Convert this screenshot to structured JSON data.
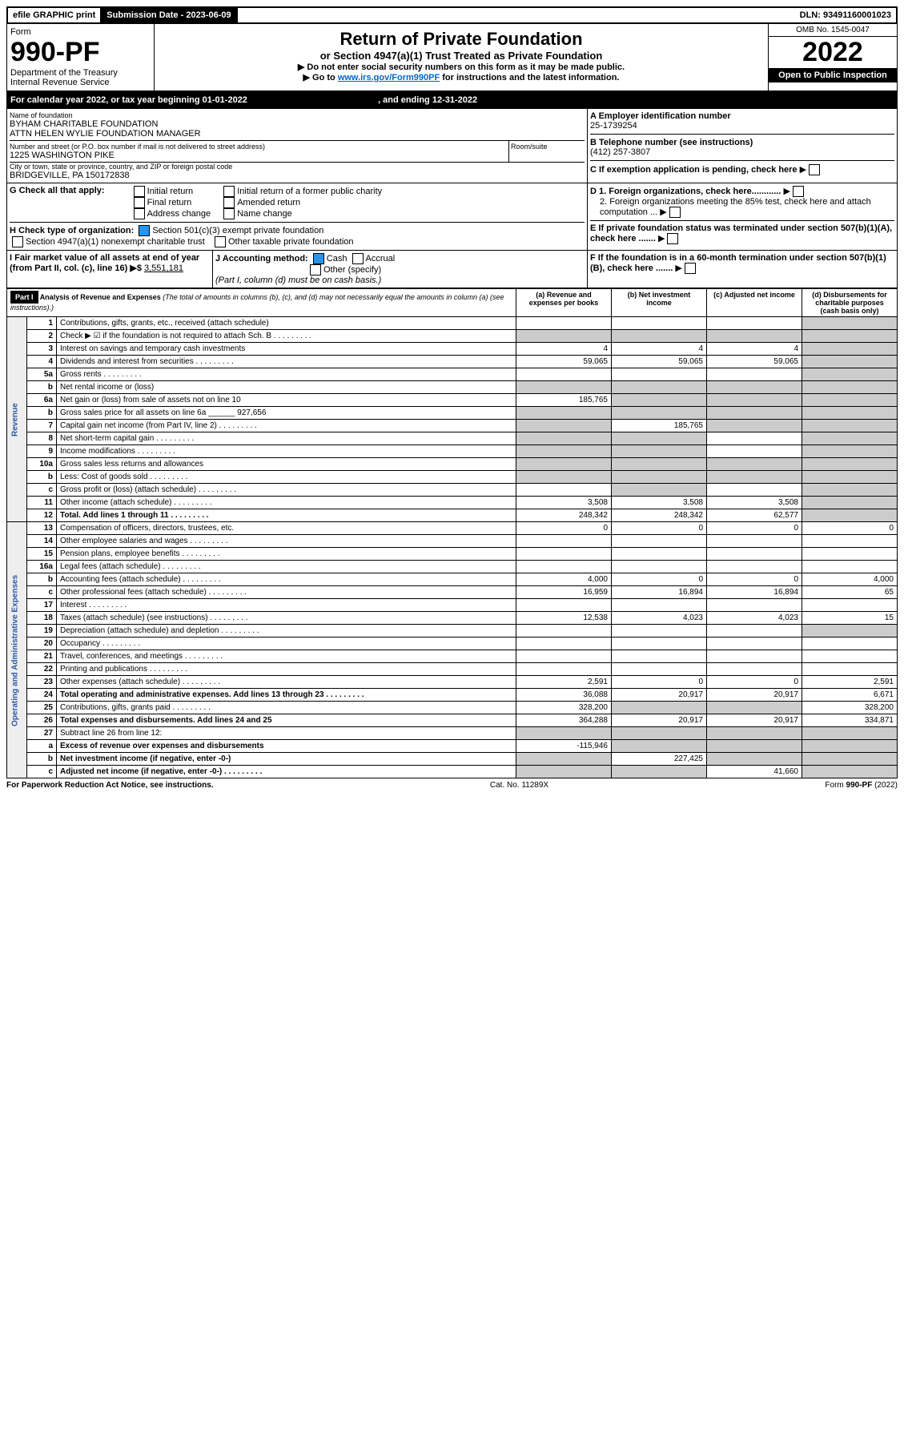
{
  "topbar": {
    "efile": "efile GRAPHIC print",
    "subdate_lbl": "Submission Date - ",
    "subdate": "2023-06-09",
    "dln": "DLN: 93491160001023"
  },
  "header": {
    "form": "Form",
    "form_no": "990-PF",
    "dept": "Department of the Treasury",
    "irs": "Internal Revenue Service",
    "title": "Return of Private Foundation",
    "sub": "or Section 4947(a)(1) Trust Treated as Private Foundation",
    "note1": "▶ Do not enter social security numbers on this form as it may be made public.",
    "note2": "▶ Go to ",
    "link": "www.irs.gov/Form990PF",
    "note3": " for instructions and the latest information.",
    "omb": "OMB No. 1545-0047",
    "year": "2022",
    "opi": "Open to Public Inspection"
  },
  "cal": {
    "pre": "For calendar year 2022, or tax year beginning ",
    "begin": "01-01-2022",
    "mid": ", and ending ",
    "end": "12-31-2022"
  },
  "id": {
    "name_lbl": "Name of foundation",
    "name1": "BYHAM CHARITABLE FOUNDATION",
    "name2": "ATTN HELEN WYLIE FOUNDATION MANAGER",
    "addr_lbl": "Number and street (or P.O. box number if mail is not delivered to street address)",
    "room_lbl": "Room/suite",
    "addr": "1225 WASHINGTON PIKE",
    "city_lbl": "City or town, state or province, country, and ZIP or foreign postal code",
    "city": "BRIDGEVILLE, PA  150172838",
    "a_lbl": "A Employer identification number",
    "a": "25-1739254",
    "b_lbl": "B Telephone number (see instructions)",
    "b": "(412) 257-3807",
    "c_lbl": "C If exemption application is pending, check here"
  },
  "g": {
    "lbl": "G Check all that apply:",
    "opts": [
      "Initial return",
      "Final return",
      "Address change",
      "Initial return of a former public charity",
      "Amended return",
      "Name change"
    ]
  },
  "h": {
    "lbl": "H Check type of organization:",
    "o1": "Section 501(c)(3) exempt private foundation",
    "o2": "Section 4947(a)(1) nonexempt charitable trust",
    "o3": "Other taxable private foundation"
  },
  "d": {
    "d1": "D 1. Foreign organizations, check here............",
    "d2": "2. Foreign organizations meeting the 85% test, check here and attach computation ..."
  },
  "e": "E  If private foundation status was terminated under section 507(b)(1)(A), check here .......",
  "f": "F  If the foundation is in a 60-month termination under section 507(b)(1)(B), check here .......",
  "i": {
    "lbl": "I Fair market value of all assets at end of year (from Part II, col. (c), line 16) ▶$ ",
    "val": "3,551,181"
  },
  "j": {
    "lbl": "J Accounting method:",
    "cash": "Cash",
    "accrual": "Accrual",
    "other": "Other (specify)",
    "note": "(Part I, column (d) must be on cash basis.)"
  },
  "part1": {
    "hdr": "Part I",
    "title": "Analysis of Revenue and Expenses",
    "sub": "(The total of amounts in columns (b), (c), and (d) may not necessarily equal the amounts in column (a) (see instructions).)",
    "cols": [
      "(a)  Revenue and expenses per books",
      "(b)  Net investment income",
      "(c)  Adjusted net income",
      "(d)  Disbursements for charitable purposes (cash basis only)"
    ]
  },
  "rows": [
    {
      "n": "1",
      "t": "Contributions, gifts, grants, etc., received (attach schedule)",
      "a": "",
      "b": "",
      "c": "",
      "d": "g"
    },
    {
      "n": "2",
      "t": "Check ▶ ☑ if the foundation is not required to attach Sch. B",
      "dots": 1,
      "ag": 1,
      "bg": 1,
      "cg": 1,
      "dg": 1
    },
    {
      "n": "3",
      "t": "Interest on savings and temporary cash investments",
      "a": "4",
      "b": "4",
      "c": "4",
      "dg": 1
    },
    {
      "n": "4",
      "t": "Dividends and interest from securities",
      "dots": 1,
      "a": "59,065",
      "b": "59,065",
      "c": "59,065",
      "dg": 1
    },
    {
      "n": "5a",
      "t": "Gross rents",
      "dots": 1,
      "dg": 1
    },
    {
      "n": "b",
      "t": "Net rental income or (loss)",
      "ag": 1,
      "bg": 1,
      "cg": 1,
      "dg": 1
    },
    {
      "n": "6a",
      "t": "Net gain or (loss) from sale of assets not on line 10",
      "a": "185,765",
      "bg": 1,
      "cg": 1,
      "dg": 1
    },
    {
      "n": "b",
      "t": "Gross sales price for all assets on line 6a",
      "inline": "927,656",
      "ag": 1,
      "bg": 1,
      "cg": 1,
      "dg": 1
    },
    {
      "n": "7",
      "t": "Capital gain net income (from Part IV, line 2)",
      "dots": 1,
      "ag": 1,
      "b": "185,765",
      "cg": 1,
      "dg": 1
    },
    {
      "n": "8",
      "t": "Net short-term capital gain",
      "dots": 1,
      "ag": 1,
      "bg": 1,
      "dg": 1
    },
    {
      "n": "9",
      "t": "Income modifications",
      "dots": 1,
      "ag": 1,
      "bg": 1,
      "dg": 1
    },
    {
      "n": "10a",
      "t": "Gross sales less returns and allowances",
      "ag": 1,
      "bg": 1,
      "cg": 1,
      "dg": 1
    },
    {
      "n": "b",
      "t": "Less: Cost of goods sold",
      "dots": 1,
      "ag": 1,
      "bg": 1,
      "cg": 1,
      "dg": 1
    },
    {
      "n": "c",
      "t": "Gross profit or (loss) (attach schedule)",
      "dots": 1,
      "bg": 1,
      "dg": 1
    },
    {
      "n": "11",
      "t": "Other income (attach schedule)",
      "dots": 1,
      "a": "3,508",
      "b": "3,508",
      "c": "3,508",
      "dg": 1
    },
    {
      "n": "12",
      "t": "Total. Add lines 1 through 11",
      "dots": 1,
      "bold": 1,
      "a": "248,342",
      "b": "248,342",
      "c": "62,577",
      "dg": 1
    },
    {
      "sec": "exp",
      "n": "13",
      "t": "Compensation of officers, directors, trustees, etc.",
      "a": "0",
      "b": "0",
      "c": "0",
      "d": "0"
    },
    {
      "n": "14",
      "t": "Other employee salaries and wages",
      "dots": 1
    },
    {
      "n": "15",
      "t": "Pension plans, employee benefits",
      "dots": 1
    },
    {
      "n": "16a",
      "t": "Legal fees (attach schedule)",
      "dots": 1
    },
    {
      "n": "b",
      "t": "Accounting fees (attach schedule)",
      "dots": 1,
      "a": "4,000",
      "b": "0",
      "c": "0",
      "d": "4,000"
    },
    {
      "n": "c",
      "t": "Other professional fees (attach schedule)",
      "dots": 1,
      "a": "16,959",
      "b": "16,894",
      "c": "16,894",
      "d": "65"
    },
    {
      "n": "17",
      "t": "Interest",
      "dots": 1
    },
    {
      "n": "18",
      "t": "Taxes (attach schedule) (see instructions)",
      "dots": 1,
      "a": "12,538",
      "b": "4,023",
      "c": "4,023",
      "d": "15"
    },
    {
      "n": "19",
      "t": "Depreciation (attach schedule) and depletion",
      "dots": 1,
      "dg": 1
    },
    {
      "n": "20",
      "t": "Occupancy",
      "dots": 1
    },
    {
      "n": "21",
      "t": "Travel, conferences, and meetings",
      "dots": 1
    },
    {
      "n": "22",
      "t": "Printing and publications",
      "dots": 1
    },
    {
      "n": "23",
      "t": "Other expenses (attach schedule)",
      "dots": 1,
      "a": "2,591",
      "b": "0",
      "c": "0",
      "d": "2,591"
    },
    {
      "n": "24",
      "t": "Total operating and administrative expenses. Add lines 13 through 23",
      "dots": 1,
      "bold": 1,
      "a": "36,088",
      "b": "20,917",
      "c": "20,917",
      "d": "6,671"
    },
    {
      "n": "25",
      "t": "Contributions, gifts, grants paid",
      "dots": 1,
      "a": "328,200",
      "bg": 1,
      "cg": 1,
      "d": "328,200"
    },
    {
      "n": "26",
      "t": "Total expenses and disbursements. Add lines 24 and 25",
      "bold": 1,
      "a": "364,288",
      "b": "20,917",
      "c": "20,917",
      "d": "334,871"
    },
    {
      "n": "27",
      "t": "Subtract line 26 from line 12:",
      "ag": 1,
      "bg": 1,
      "cg": 1,
      "dg": 1
    },
    {
      "n": "a",
      "t": "Excess of revenue over expenses and disbursements",
      "bold": 1,
      "a": "-115,946",
      "bg": 1,
      "cg": 1,
      "dg": 1
    },
    {
      "n": "b",
      "t": "Net investment income (if negative, enter -0-)",
      "bold": 1,
      "ag": 1,
      "b": "227,425",
      "cg": 1,
      "dg": 1
    },
    {
      "n": "c",
      "t": "Adjusted net income (if negative, enter -0-)",
      "dots": 1,
      "bold": 1,
      "ag": 1,
      "bg": 1,
      "c": "41,660",
      "dg": 1
    }
  ],
  "sidelabels": {
    "rev": "Revenue",
    "exp": "Operating and Administrative Expenses"
  },
  "footer": {
    "left": "For Paperwork Reduction Act Notice, see instructions.",
    "mid": "Cat. No. 11289X",
    "right": "Form 990-PF (2022)"
  }
}
